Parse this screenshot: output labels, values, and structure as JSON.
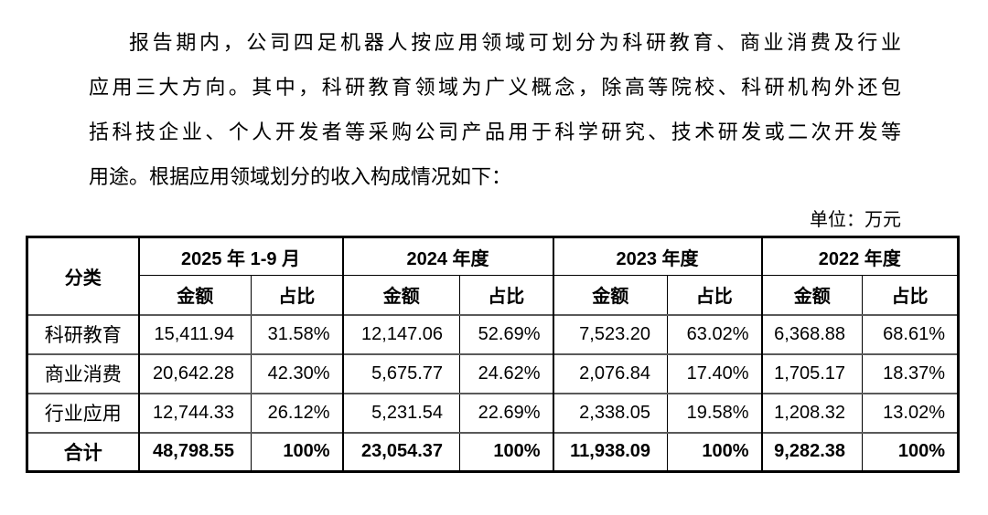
{
  "paragraph": {
    "lines": [
      "报告期内，公司四足机器人按应用领域可划分为科研教育、商业消费及行业",
      "应用三大方向。其中，科研教育领域为广义概念，除高等院校、科研机构外还包",
      "括科技企业、个人开发者等采购公司产品用于科学研究、技术研发或二次开发等",
      "用途。根据应用领域划分的收入构成情况如下："
    ]
  },
  "unit_label": "单位：万元",
  "table": {
    "corner_header": "分类",
    "period_headers": [
      "2025 年 1-9 月",
      "2024 年度",
      "2023 年度",
      "2022 年度"
    ],
    "sub_headers": {
      "amount": "金额",
      "ratio": "占比"
    },
    "rows": [
      {
        "category": "科研教育",
        "values": [
          "15,411.94",
          "31.58%",
          "12,147.06",
          "52.69%",
          "7,523.20",
          "63.02%",
          "6,368.88",
          "68.61%"
        ],
        "bold": false
      },
      {
        "category": "商业消费",
        "values": [
          "20,642.28",
          "42.30%",
          "5,675.77",
          "24.62%",
          "2,076.84",
          "17.40%",
          "1,705.17",
          "18.37%"
        ],
        "bold": false
      },
      {
        "category": "行业应用",
        "values": [
          "12,744.33",
          "26.12%",
          "5,231.54",
          "22.69%",
          "2,338.05",
          "19.58%",
          "1,208.32",
          "13.02%"
        ],
        "bold": false
      },
      {
        "category": "合计",
        "values": [
          "48,798.55",
          "100%",
          "23,054.37",
          "100%",
          "11,938.09",
          "100%",
          "9,282.38",
          "100%"
        ],
        "bold": true
      }
    ]
  }
}
